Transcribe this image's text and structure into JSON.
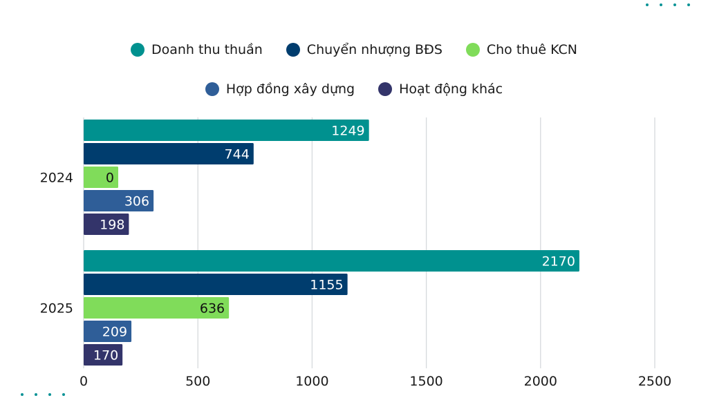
{
  "chart_data": {
    "type": "bar",
    "orientation": "horizontal",
    "categories": [
      "2024",
      "2025"
    ],
    "series": [
      {
        "name": "Doanh thu thuần",
        "color": "#00918f",
        "values": [
          1249,
          2170
        ]
      },
      {
        "name": "Chuyển nhượng BĐS",
        "color": "#003d6e",
        "values": [
          744,
          1155
        ]
      },
      {
        "name": "Cho thuê KCN",
        "color": "#80dc5a",
        "values": [
          0,
          636
        ]
      },
      {
        "name": "Hợp đồng xây dựng",
        "color": "#2f5e98",
        "values": [
          306,
          209
        ]
      },
      {
        "name": "Hoạt động khác",
        "color": "#33346a",
        "values": [
          198,
          170
        ]
      }
    ],
    "xlim": [
      0,
      2500
    ],
    "xticks": [
      "0",
      "500",
      "1000",
      "1500",
      "2000",
      "2500"
    ],
    "grid": true,
    "legend_position": "top"
  }
}
